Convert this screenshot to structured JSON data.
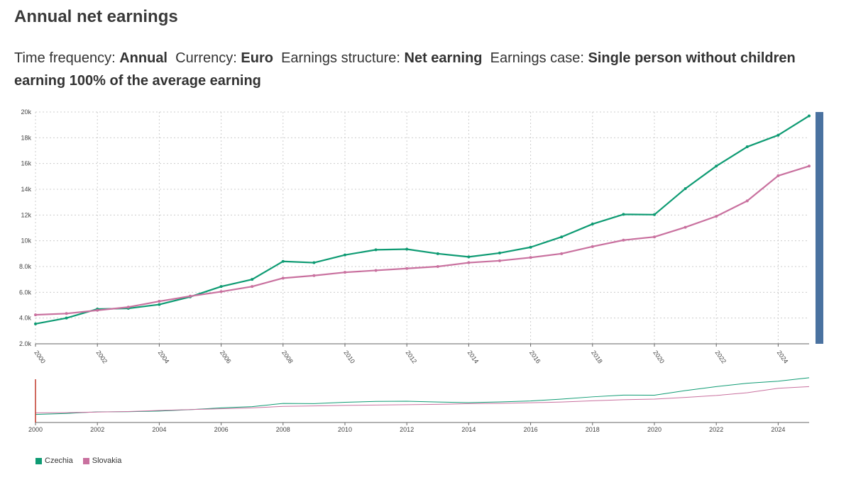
{
  "header": {
    "title": "Annual net earnings",
    "filters": [
      {
        "label": "Time frequency:",
        "value": "Annual"
      },
      {
        "label": "Currency:",
        "value": "Euro"
      },
      {
        "label": "Earnings structure:",
        "value": "Net earning"
      },
      {
        "label": "Earnings case:",
        "value": "Single person without children earning 100% of the average earning"
      }
    ]
  },
  "colors": {
    "Czechia": "#0e9b73",
    "Slovakia": "#c9719f",
    "grid": "#cccccc",
    "scrollbar": "#4a72a0",
    "brush_left": "#c0392b"
  },
  "chart_data": {
    "type": "line",
    "x": [
      2000,
      2001,
      2002,
      2003,
      2004,
      2005,
      2006,
      2007,
      2008,
      2009,
      2010,
      2011,
      2012,
      2013,
      2014,
      2015,
      2016,
      2017,
      2018,
      2019,
      2020,
      2021,
      2022,
      2023,
      2024,
      2025
    ],
    "x_ticks": [
      "2000",
      "2002",
      "2004",
      "2006",
      "2008",
      "2010",
      "2012",
      "2014",
      "2016",
      "2018",
      "2020",
      "2022",
      "2024"
    ],
    "y_ticks": [
      "2.0k",
      "4.0k",
      "6.0k",
      "8.0k",
      "10k",
      "12k",
      "14k",
      "16k",
      "18k",
      "20k"
    ],
    "ylim": [
      2000,
      20000
    ],
    "xlim": [
      2000,
      2025
    ],
    "grid": true,
    "legend_position": "bottom-left",
    "series": [
      {
        "name": "Czechia",
        "values": [
          3550,
          4000,
          4700,
          4750,
          5050,
          5650,
          6450,
          7000,
          8400,
          8300,
          8900,
          9300,
          9350,
          9000,
          8750,
          9050,
          9500,
          10300,
          11300,
          12050,
          12030,
          14050,
          15800,
          17300,
          18200,
          19700
        ]
      },
      {
        "name": "Slovakia",
        "values": [
          4250,
          4350,
          4600,
          4850,
          5300,
          5700,
          6050,
          6450,
          7100,
          7300,
          7550,
          7700,
          7850,
          8000,
          8300,
          8450,
          8700,
          9000,
          9550,
          10050,
          10300,
          11050,
          11900,
          13100,
          15050,
          15800
        ]
      }
    ]
  }
}
